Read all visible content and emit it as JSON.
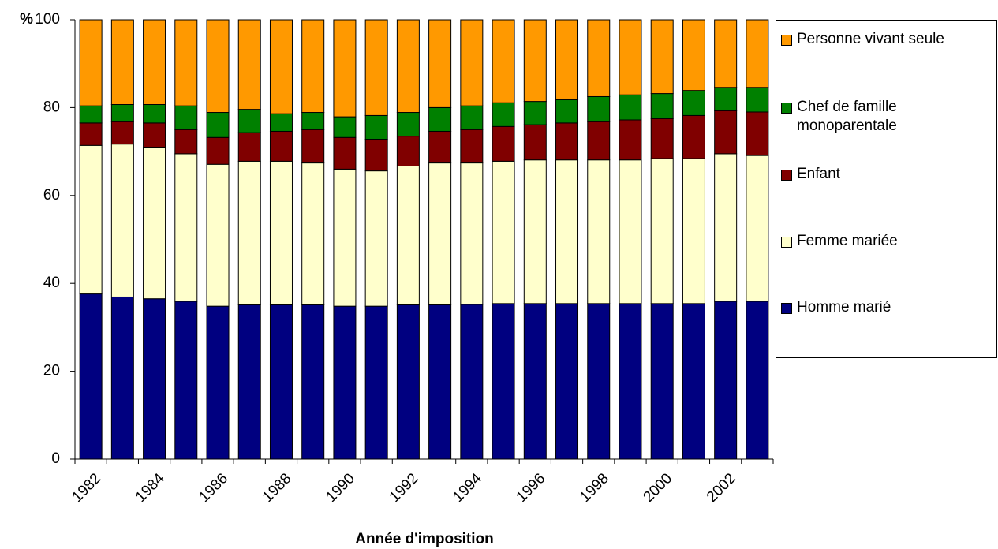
{
  "chart_data": {
    "type": "stacked_bar",
    "y_label": "%",
    "x_label": "Année d'imposition",
    "categories": [
      "1982",
      null,
      "1984",
      null,
      "1986",
      null,
      "1988",
      null,
      "1990",
      null,
      "1992",
      null,
      "1994",
      null,
      "1996",
      null,
      "1998",
      null,
      "2000",
      null,
      "2002",
      null
    ],
    "ylim": [
      0,
      100
    ],
    "yticks": [
      0,
      20,
      40,
      60,
      80,
      100
    ],
    "series": [
      {
        "name": "Homme marié",
        "color": "#000080",
        "values": [
          37.6,
          36.9,
          36.5,
          35.9,
          34.8,
          35.1,
          35.1,
          35.1,
          34.8,
          34.8,
          35.1,
          35.1,
          35.2,
          35.4,
          35.4,
          35.4,
          35.4,
          35.4,
          35.4,
          35.4,
          35.9,
          35.9
        ]
      },
      {
        "name": "Femme mariée",
        "color": "#ffffcc",
        "values": [
          33.8,
          34.8,
          34.5,
          33.6,
          32.3,
          32.7,
          32.7,
          32.3,
          31.2,
          30.8,
          31.6,
          32.3,
          32.2,
          32.4,
          32.7,
          32.7,
          32.7,
          32.7,
          33.0,
          33.0,
          33.6,
          33.2
        ]
      },
      {
        "name": "Enfant",
        "color": "#800000",
        "values": [
          5.1,
          5.1,
          5.5,
          5.5,
          6.1,
          6.5,
          6.8,
          7.6,
          7.2,
          7.2,
          6.8,
          7.2,
          7.6,
          7.9,
          8.0,
          8.4,
          8.7,
          9.1,
          9.1,
          9.8,
          9.8,
          9.9
        ]
      },
      {
        "name": "Chef de famille monoparentale",
        "color": "#008000",
        "values": [
          3.9,
          3.9,
          4.2,
          5.4,
          5.7,
          5.3,
          4.0,
          3.9,
          4.7,
          5.4,
          5.4,
          5.4,
          5.4,
          5.4,
          5.3,
          5.3,
          5.7,
          5.7,
          5.7,
          5.7,
          5.3,
          5.6
        ]
      },
      {
        "name": "Personne vivant seule",
        "color": "#ff9900",
        "values": [
          19.6,
          19.3,
          19.3,
          19.6,
          21.1,
          20.4,
          21.4,
          21.1,
          22.1,
          21.8,
          21.1,
          20.0,
          19.6,
          18.9,
          18.6,
          18.2,
          17.5,
          17.1,
          16.8,
          16.1,
          15.4,
          15.4
        ]
      }
    ]
  }
}
